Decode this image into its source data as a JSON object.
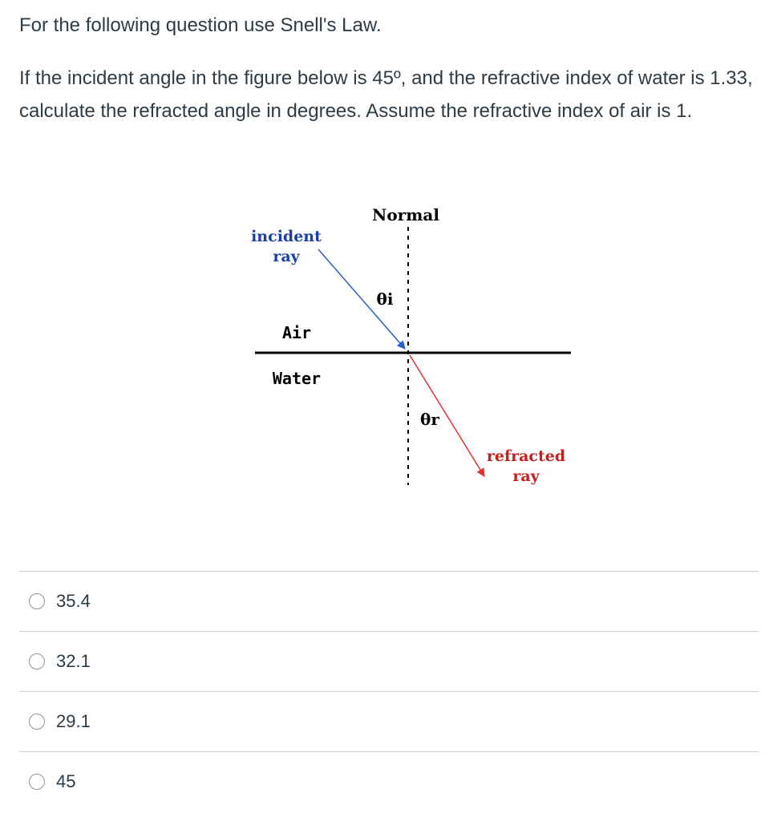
{
  "question": {
    "intro": "For the following question use Snell's Law.",
    "prompt": "If the incident angle in the figure below is 45º, and the refractive index of water is 1.33, calculate the refracted angle in degrees. Assume the refractive index of air is 1."
  },
  "figure": {
    "normal_label": "Normal",
    "incident_label_line1": "incident",
    "incident_label_line2": "ray",
    "theta_i_label": "θi",
    "air_label": "Air",
    "water_label": "Water",
    "theta_r_label": "θr",
    "refracted_label_line1": "refracted",
    "refracted_label_line2": "ray",
    "colors": {
      "incident_ray": "#2b5cc9",
      "refracted_ray": "#e0322b",
      "interface": "#000000",
      "incident_label": "#1a3faa",
      "refracted_label": "#c81e1e"
    }
  },
  "answers": [
    {
      "label": "35.4"
    },
    {
      "label": "32.1"
    },
    {
      "label": "29.1"
    },
    {
      "label": "45"
    }
  ]
}
